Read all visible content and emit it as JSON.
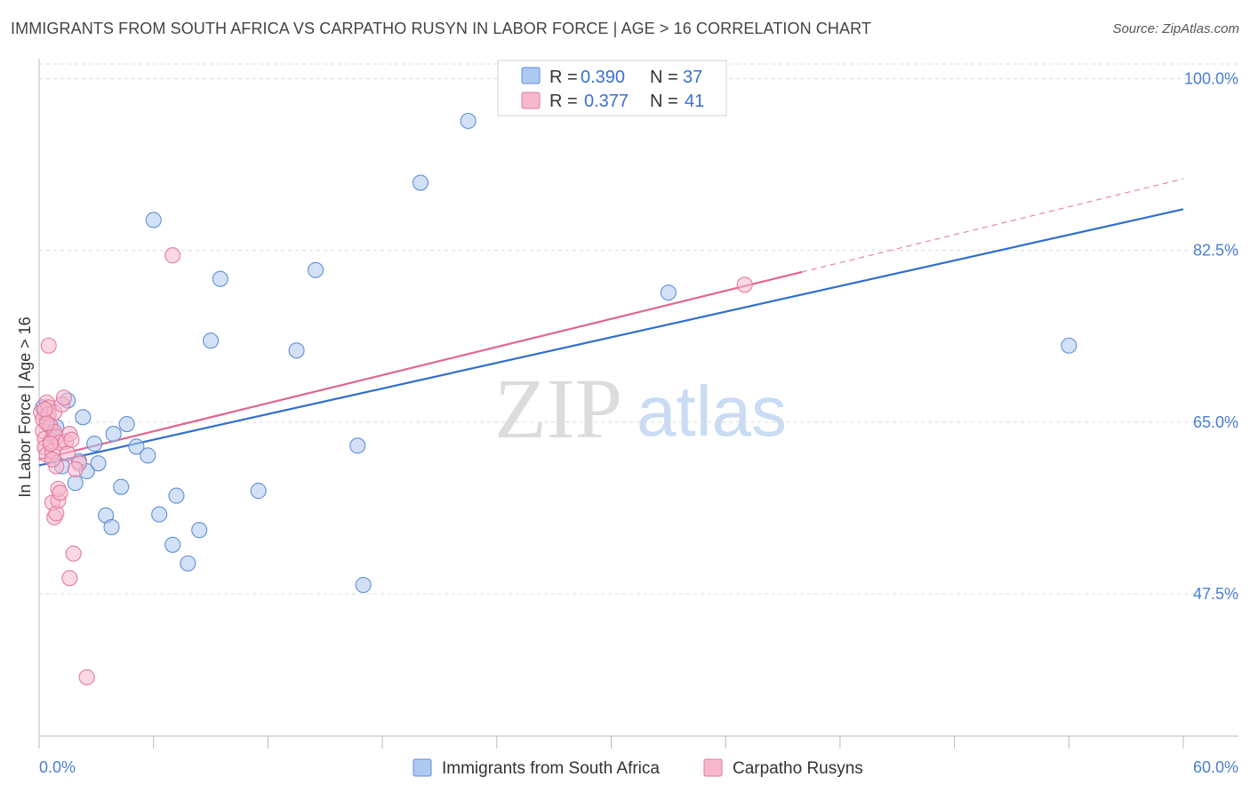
{
  "header": {
    "title": "IMMIGRANTS FROM SOUTH AFRICA VS CARPATHO RUSYN IN LABOR FORCE | AGE > 16 CORRELATION CHART",
    "source": "Source: ZipAtlas.com"
  },
  "watermark": {
    "zip": "ZIP",
    "atlas": "atlas"
  },
  "legend": {
    "series1": {
      "r_label": "R =",
      "r_value": "0.390",
      "n_label": "N =",
      "n_value": "37"
    },
    "series2": {
      "r_label": "R =",
      "r_value": "0.377",
      "n_label": "N =",
      "n_value": "41"
    }
  },
  "colors": {
    "blue_fill": "#aec9f0",
    "blue_stroke": "#5f8fd6",
    "blue_line": "#2f6fcc",
    "pink_fill": "#f7b8cc",
    "pink_stroke": "#e27ba0",
    "pink_line": "#e0668f",
    "grid": "#dcdcdc",
    "tick_text": "#4a7fd4"
  },
  "chart_data": {
    "type": "scatter",
    "title": "IMMIGRANTS FROM SOUTH AFRICA VS CARPATHO RUSYN IN LABOR FORCE | AGE > 16 CORRELATION CHART",
    "xlabel": "",
    "ylabel": "In Labor Force | Age > 16",
    "xlim": [
      0,
      60
    ],
    "ylim": [
      33,
      101.5
    ],
    "x_tick_labels": [
      "0.0%",
      "60.0%"
    ],
    "y_ticks": [
      47.5,
      65.0,
      82.5,
      100.0
    ],
    "y_tick_labels": [
      "47.5%",
      "65.0%",
      "82.5%",
      "100.0%"
    ],
    "grid": true,
    "legend_position": "top-center",
    "series": [
      {
        "name": "Immigrants from South Africa",
        "color": "#5f8fd6",
        "r": 0.39,
        "n": 37,
        "points": [
          [
            0.2,
            66.5
          ],
          [
            0.4,
            65.5
          ],
          [
            0.5,
            64.8
          ],
          [
            0.7,
            63.5
          ],
          [
            0.9,
            64.5
          ],
          [
            1.2,
            60.5
          ],
          [
            1.5,
            67.2
          ],
          [
            1.9,
            58.8
          ],
          [
            2.1,
            61.0
          ],
          [
            2.3,
            65.5
          ],
          [
            2.5,
            60.0
          ],
          [
            2.9,
            62.8
          ],
          [
            3.1,
            60.8
          ],
          [
            3.5,
            55.5
          ],
          [
            3.8,
            54.3
          ],
          [
            3.9,
            63.8
          ],
          [
            4.3,
            58.4
          ],
          [
            4.6,
            64.8
          ],
          [
            5.1,
            62.5
          ],
          [
            5.7,
            61.6
          ],
          [
            6.0,
            85.6
          ],
          [
            6.3,
            55.6
          ],
          [
            7.0,
            52.5
          ],
          [
            7.2,
            57.5
          ],
          [
            7.8,
            50.6
          ],
          [
            8.4,
            54.0
          ],
          [
            9.0,
            73.3
          ],
          [
            9.5,
            79.6
          ],
          [
            11.5,
            58.0
          ],
          [
            13.5,
            72.3
          ],
          [
            14.5,
            80.5
          ],
          [
            16.7,
            62.6
          ],
          [
            17.0,
            48.4
          ],
          [
            20.0,
            89.4
          ],
          [
            22.5,
            95.7
          ],
          [
            33.0,
            78.2
          ],
          [
            54.0,
            72.8
          ]
        ]
      },
      {
        "name": "Carpatho Rusyns",
        "color": "#e27ba0",
        "r": 0.377,
        "n": 41,
        "points": [
          [
            0.1,
            66.0
          ],
          [
            0.2,
            65.3
          ],
          [
            0.2,
            64.1
          ],
          [
            0.3,
            63.3
          ],
          [
            0.3,
            62.4
          ],
          [
            0.4,
            67.0
          ],
          [
            0.4,
            61.7
          ],
          [
            0.5,
            66.5
          ],
          [
            0.5,
            65.8
          ],
          [
            0.6,
            64.6
          ],
          [
            0.6,
            63.0
          ],
          [
            0.7,
            62.0
          ],
          [
            0.5,
            72.8
          ],
          [
            0.8,
            66.0
          ],
          [
            0.8,
            64.0
          ],
          [
            0.9,
            63.5
          ],
          [
            0.9,
            60.5
          ],
          [
            0.7,
            56.8
          ],
          [
            0.8,
            55.3
          ],
          [
            0.9,
            55.7
          ],
          [
            1.0,
            57.0
          ],
          [
            1.0,
            58.2
          ],
          [
            1.1,
            57.8
          ],
          [
            1.1,
            62.9
          ],
          [
            1.2,
            66.8
          ],
          [
            1.3,
            67.5
          ],
          [
            1.4,
            63.0
          ],
          [
            1.5,
            61.8
          ],
          [
            1.6,
            63.8
          ],
          [
            1.7,
            63.2
          ],
          [
            1.8,
            51.6
          ],
          [
            1.6,
            49.1
          ],
          [
            2.1,
            60.8
          ],
          [
            2.5,
            39.0
          ],
          [
            7.0,
            82.0
          ],
          [
            37.0,
            79.0
          ],
          [
            0.4,
            64.9
          ],
          [
            0.6,
            62.8
          ],
          [
            0.3,
            66.3
          ],
          [
            1.9,
            60.2
          ],
          [
            0.7,
            61.2
          ]
        ]
      }
    ],
    "trendlines": [
      {
        "series": "Immigrants from South Africa",
        "x0": 0,
        "y0": 60.6,
        "x1": 60,
        "y1": 86.7,
        "dashed_extension": false
      },
      {
        "series": "Carpatho Rusyns",
        "x0": 0,
        "y0": 61.2,
        "x1": 40,
        "y1": 80.3,
        "extend_to_x": 60,
        "extend_to_y": 89.8,
        "dashed_extension": true
      }
    ]
  },
  "bottom_legend": {
    "item1": "Immigrants from South Africa",
    "item2": "Carpatho Rusyns"
  }
}
